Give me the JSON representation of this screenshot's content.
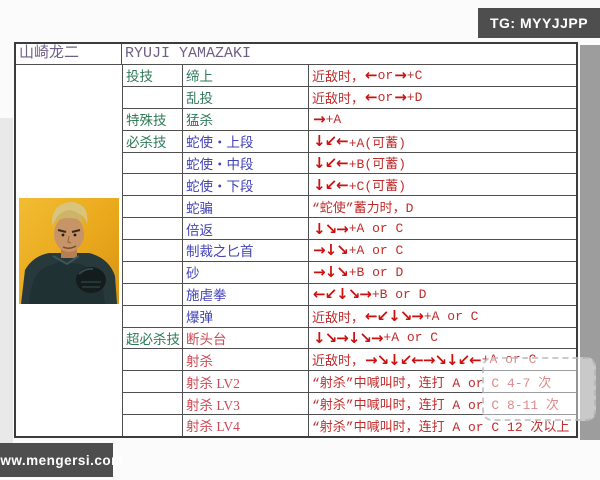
{
  "badges": {
    "top_right": "TG: MYYJJPP",
    "bottom_left": "www.mengersi.com"
  },
  "header": {
    "name_cn": "山崎龙二",
    "name_en": "RYUJI YAMAZAKI"
  },
  "portrait": {
    "description": "yamazaki-character-portrait",
    "bg_color": "#e9a81c"
  },
  "colors": {
    "category_green": "#2e7a57",
    "move_blue": "#4343b8",
    "move_red": "#cc4a55",
    "command_red": "#c22b2b",
    "arrow_red": "#ce0f0f",
    "header_purple": "#6e5f86",
    "badge_bg": "#4e4e4e"
  },
  "table": {
    "rows": [
      {
        "category": "投技",
        "name": "缔上",
        "name_color": "green",
        "command": "近敌时，←or→+C"
      },
      {
        "category": "",
        "name": "乱投",
        "name_color": "green",
        "command": "近敌时，←or→+D"
      },
      {
        "category": "特殊技",
        "name": "猛杀",
        "name_color": "green",
        "command": "→+A"
      },
      {
        "category": "必杀技",
        "name": "蛇使・上段",
        "name_color": "blue",
        "command": "↓↙←+A(可蓄)"
      },
      {
        "category": "",
        "name": "蛇使・中段",
        "name_color": "blue",
        "command": "↓↙←+B(可蓄)"
      },
      {
        "category": "",
        "name": "蛇使・下段",
        "name_color": "blue",
        "command": "↓↙←+C(可蓄)"
      },
      {
        "category": "",
        "name": "蛇骗",
        "name_color": "blue",
        "command": "“蛇使”蓄力时，D"
      },
      {
        "category": "",
        "name": "倍返",
        "name_color": "blue",
        "command": "↓↘→+A or C"
      },
      {
        "category": "",
        "name": "制裁之匕首",
        "name_color": "blue",
        "command": "→↓↘+A or C"
      },
      {
        "category": "",
        "name": "砂",
        "name_color": "blue",
        "command": "→↓↘+B or D"
      },
      {
        "category": "",
        "name": "施虐拳",
        "name_color": "blue",
        "command": "←↙↓↘→+B or D"
      },
      {
        "category": "",
        "name": "爆弹",
        "name_color": "blue",
        "command": "近敌时，←↙↓↘→+A or C"
      },
      {
        "category": "超必杀技",
        "name": "断头台",
        "name_color": "red",
        "command": "↓↘→↓↘→+A or C"
      },
      {
        "category": "",
        "name": "射杀",
        "name_color": "red",
        "command": "近敌时，→↘↓↙←→↘↓↙←+A or C"
      },
      {
        "category": "",
        "name": "射杀 LV2",
        "name_color": "red",
        "command": "“射杀”中喊叫时，连打 A or C 4-7 次"
      },
      {
        "category": "",
        "name": "射杀 LV3",
        "name_color": "red",
        "command": "“射杀”中喊叫时，连打 A or C 8-11 次"
      },
      {
        "category": "",
        "name": "射杀 LV4",
        "name_color": "red",
        "command": "“射杀”中喊叫时，连打 A or C 12 次以上"
      }
    ]
  }
}
